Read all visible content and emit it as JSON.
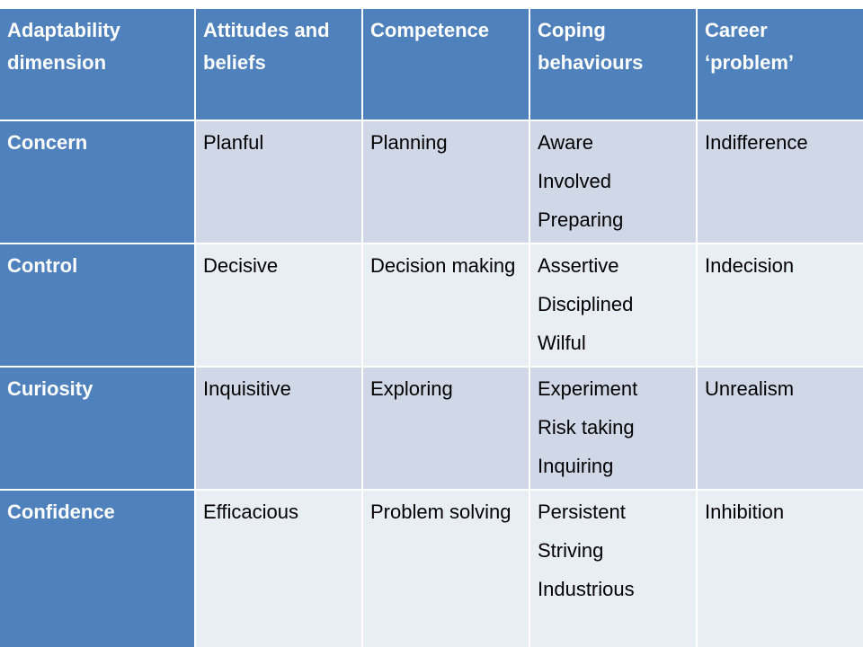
{
  "table": {
    "headers": [
      "Adaptability dimension",
      "Attitudes and beliefs",
      "Competence",
      "Coping behaviours",
      "Career ‘problem’"
    ],
    "rows": [
      {
        "dimension": "Concern",
        "attitudes": "Planful",
        "competence": "Planning",
        "behaviours": [
          "Aware",
          "Involved",
          "Preparing"
        ],
        "problem": "Indifference"
      },
      {
        "dimension": "Control",
        "attitudes": "Decisive",
        "competence": "Decision making",
        "behaviours": [
          "Assertive",
          "Disciplined",
          "Wilful"
        ],
        "problem": "Indecision"
      },
      {
        "dimension": "Curiosity",
        "attitudes": "Inquisitive",
        "competence": "Exploring",
        "behaviours": [
          "Experiment",
          "Risk taking",
          "Inquiring"
        ],
        "problem": "Unrealism"
      },
      {
        "dimension": "Confidence",
        "attitudes": "Efficacious",
        "competence": "Problem solving",
        "behaviours": [
          "Persistent",
          "Striving",
          "Industrious"
        ],
        "problem": "Inhibition"
      }
    ]
  },
  "colors": {
    "header": "#4f81bd",
    "band_dark": "#d0d8e8",
    "band_light": "#e9edf4"
  }
}
